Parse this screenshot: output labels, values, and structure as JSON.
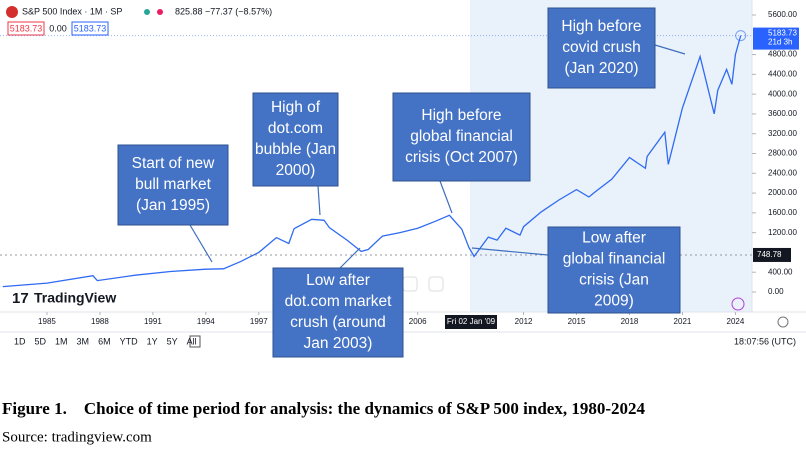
{
  "chart_data": {
    "type": "line",
    "title": "S&P 500 Index · 1M · SP",
    "x": [
      1982.5,
      1985,
      1987.6,
      1987.85,
      1990,
      1992,
      1994,
      1995,
      1996,
      1997,
      1998,
      1998.7,
      1999,
      2000,
      2000.7,
      2001,
      2002,
      2002.8,
      2003.2,
      2004,
      2005,
      2006,
      2007,
      2007.8,
      2008.5,
      2008.9,
      2009.2,
      2010,
      2010.5,
      2011,
      2011.8,
      2012,
      2013,
      2014,
      2015,
      2015.7,
      2016,
      2017,
      2018,
      2018.9,
      2019,
      2020,
      2020.2,
      2021,
      2022,
      2022.8,
      2023,
      2023.5,
      2023.8,
      2024,
      2024.3
    ],
    "values": [
      110,
      180,
      330,
      230,
      340,
      415,
      460,
      470,
      620,
      800,
      1100,
      980,
      1280,
      1470,
      1450,
      1300,
      1050,
      820,
      860,
      1130,
      1200,
      1290,
      1430,
      1550,
      1270,
      900,
      720,
      1110,
      1050,
      1290,
      1150,
      1320,
      1620,
      1860,
      2070,
      1920,
      2010,
      2280,
      2720,
      2500,
      2740,
      3230,
      2580,
      3720,
      4760,
      3600,
      4080,
      4500,
      4200,
      4800,
      5183.73
    ],
    "color": "#2f6bf2",
    "xlim": [
      1982.34,
      2024.94
    ],
    "xticks": [
      1985,
      1988,
      1991,
      1994,
      1997,
      2006,
      2012,
      2015,
      2018,
      2021,
      2024
    ],
    "ylim": [
      0,
      5700
    ],
    "yticks": [
      {
        "value": 0,
        "label": "0.00"
      },
      {
        "value": 400,
        "label": "400.00"
      },
      {
        "value": 1200,
        "label": "1200.00"
      },
      {
        "value": 1600,
        "label": "1600.00"
      },
      {
        "value": 2000,
        "label": "2000.00"
      },
      {
        "value": 2400,
        "label": "2400.00"
      },
      {
        "value": 2800,
        "label": "2800.00"
      },
      {
        "value": 3200,
        "label": "3200.00"
      },
      {
        "value": 3600,
        "label": "3600.00"
      },
      {
        "value": 4000,
        "label": "4000.00"
      },
      {
        "value": 4400,
        "label": "4400.00"
      },
      {
        "value": 4800,
        "label": "4800.00"
      },
      {
        "value": 5600,
        "label": "5600.00"
      }
    ],
    "last_price": 5183.73,
    "last_price_countdown": "21d 3h",
    "crosshair": {
      "x_label": "Fri 02 Jan '09",
      "y": 748.78
    },
    "annotations": [
      {
        "lines": [
          "Start of new",
          "bull market",
          "(Jan 1995)"
        ]
      },
      {
        "lines": [
          "High of",
          "dot.com",
          "bubble (Jan",
          "2000)"
        ]
      },
      {
        "lines": [
          "High before",
          "global financial",
          "crisis (Oct 2007)"
        ]
      },
      {
        "lines": [
          "Low after",
          "dot.com market",
          "crush (around",
          "Jan 2003)"
        ]
      },
      {
        "lines": [
          "Low after",
          "global financial",
          "crisis (Jan",
          "2009)"
        ]
      },
      {
        "lines": [
          "High before",
          "covid crush",
          "(Jan 2020)"
        ]
      }
    ]
  },
  "ui": {
    "change": "825.88 −77.37 (−8.57%)",
    "bid": "5183.73",
    "spread": "0.00",
    "ask": "5183.73",
    "brand": "TradingView",
    "ranges": [
      "1D",
      "5D",
      "1M",
      "3M",
      "6M",
      "YTD",
      "1Y",
      "5Y",
      "All"
    ],
    "clock": "18:07:56 (UTC)"
  },
  "caption": {
    "title": "Figure 1.    Choice of time period for analysis: the dynamics of S&P 500 index, 1980-2024",
    "source": "Source: tradingview.com"
  }
}
